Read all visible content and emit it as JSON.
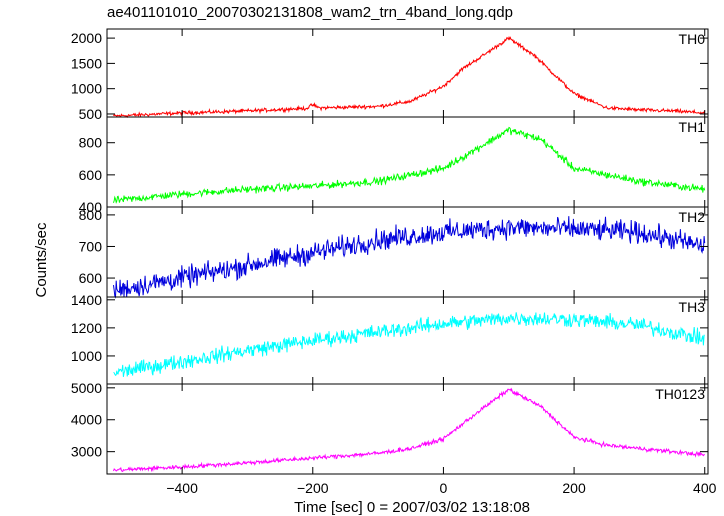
{
  "chart_data": {
    "type": "line",
    "title": "ae401101010_20070302131808_wam2_trn_4band_long.qdp",
    "xlabel": "Time [sec] 0 = 2007/03/02 13:18:08",
    "ylabel": "Counts/sec",
    "xlim": [
      -515,
      405
    ],
    "x_ticks": [
      -400,
      -200,
      0,
      200,
      400
    ],
    "panels": [
      {
        "name": "TH0",
        "color": "#ff0000",
        "ylim": [
          440,
          2180
        ],
        "y_ticks": [
          500,
          1000,
          1500,
          2000
        ],
        "noise": 25,
        "x": [
          -505,
          -400,
          -300,
          -210,
          -200,
          -190,
          -100,
          -50,
          0,
          30,
          60,
          100,
          140,
          200,
          250,
          300,
          350,
          400
        ],
        "y": [
          460,
          520,
          560,
          610,
          680,
          620,
          650,
          750,
          1050,
          1400,
          1650,
          2000,
          1650,
          900,
          620,
          580,
          560,
          520
        ]
      },
      {
        "name": "TH1",
        "color": "#00ff00",
        "ylim": [
          400,
          960
        ],
        "y_ticks": [
          400,
          600,
          800
        ],
        "noise": 16,
        "x": [
          -505,
          -400,
          -300,
          -200,
          -100,
          0,
          50,
          100,
          150,
          200,
          300,
          400
        ],
        "y": [
          440,
          480,
          510,
          530,
          560,
          640,
          760,
          880,
          820,
          640,
          560,
          510
        ]
      },
      {
        "name": "TH2",
        "color": "#0000dd",
        "ylim": [
          540,
          825
        ],
        "y_ticks": [
          600,
          700,
          800
        ],
        "noise": 24,
        "x": [
          -505,
          -400,
          -300,
          -200,
          -100,
          0,
          100,
          200,
          300,
          400
        ],
        "y": [
          560,
          600,
          640,
          680,
          720,
          745,
          760,
          755,
          745,
          700
        ]
      },
      {
        "name": "TH3",
        "color": "#00ffff",
        "ylim": [
          800,
          1420
        ],
        "y_ticks": [
          1000,
          1200,
          1400
        ],
        "noise": 38,
        "x": [
          -505,
          -400,
          -300,
          -200,
          -100,
          0,
          100,
          200,
          300,
          400
        ],
        "y": [
          880,
          960,
          1040,
          1110,
          1170,
          1230,
          1270,
          1260,
          1220,
          1120
        ]
      },
      {
        "name": "TH0123",
        "color": "#ff00ff",
        "ylim": [
          2300,
          5120
        ],
        "y_ticks": [
          3000,
          4000,
          5000
        ],
        "noise": 45,
        "x": [
          -505,
          -400,
          -300,
          -200,
          -100,
          -50,
          0,
          50,
          100,
          150,
          200,
          250,
          300,
          400
        ],
        "y": [
          2420,
          2520,
          2650,
          2800,
          2950,
          3100,
          3400,
          4200,
          4950,
          4400,
          3450,
          3200,
          3100,
          2900
        ]
      }
    ]
  }
}
